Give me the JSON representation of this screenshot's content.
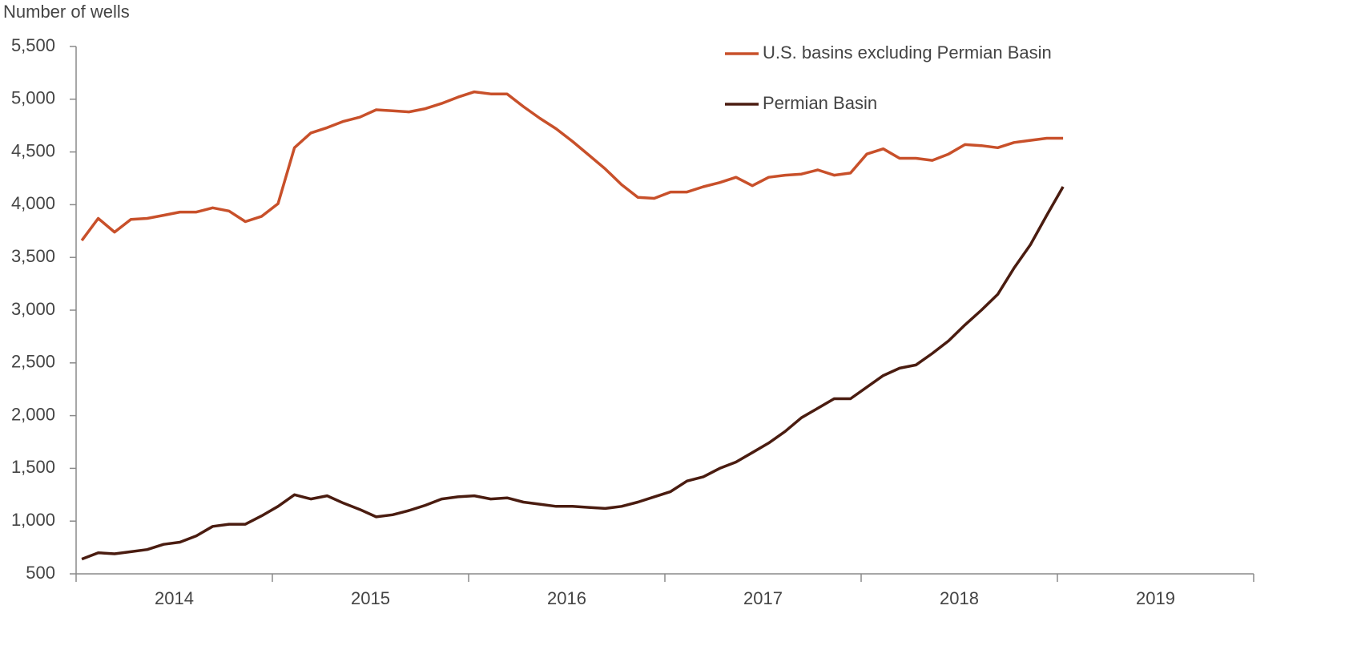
{
  "chart_data": {
    "type": "line",
    "y_axis_label": "Number of wells",
    "categories": [
      null,
      null,
      null,
      null,
      null,
      null,
      null,
      null,
      null,
      null,
      null,
      null,
      null,
      null,
      null,
      null,
      null,
      null,
      null,
      null,
      null,
      null,
      null,
      null,
      null,
      null,
      null,
      null,
      null,
      null,
      null,
      null,
      null,
      null,
      null,
      null,
      null,
      null,
      null,
      null,
      null,
      null,
      null,
      null,
      null,
      null,
      null,
      null,
      null,
      null,
      null,
      null,
      null,
      null,
      null,
      null,
      null,
      null,
      null,
      null,
      null
    ],
    "year_labels": [
      "2014",
      "2015",
      "2016",
      "2017",
      "2018",
      "2019"
    ],
    "series": [
      {
        "name": "U.S. basins excluding Permian Basin",
        "color": "#c8502a",
        "values": [
          3660,
          3870,
          3740,
          3860,
          3870,
          3900,
          3930,
          3930,
          3970,
          3940,
          3840,
          3890,
          4010,
          4540,
          4680,
          4730,
          4790,
          4830,
          4900,
          4890,
          4880,
          4910,
          4960,
          5020,
          5070,
          5050,
          5050,
          4930,
          4820,
          4720,
          4600,
          4470,
          4340,
          4190,
          4070,
          4060,
          4120,
          4120,
          4170,
          4210,
          4260,
          4180,
          4260,
          4280,
          4290,
          4330,
          4280,
          4300,
          4480,
          4530,
          4440,
          4440,
          4420,
          4480,
          4570,
          4560,
          4540,
          4590,
          4610,
          4630,
          4630
        ]
      },
      {
        "name": "Permian Basin",
        "color": "#4a1c10",
        "values": [
          640,
          700,
          690,
          710,
          730,
          780,
          800,
          860,
          950,
          970,
          970,
          1050,
          1140,
          1250,
          1210,
          1240,
          1170,
          1110,
          1040,
          1060,
          1100,
          1150,
          1210,
          1230,
          1240,
          1210,
          1220,
          1180,
          1160,
          1140,
          1140,
          1130,
          1120,
          1140,
          1180,
          1230,
          1280,
          1380,
          1420,
          1500,
          1560,
          1650,
          1740,
          1850,
          1980,
          2070,
          2160,
          2160,
          2270,
          2380,
          2450,
          2480,
          2590,
          2710,
          2860,
          3000,
          3150,
          3400,
          3620,
          3900,
          4170
        ]
      }
    ],
    "ylim": [
      500,
      5500
    ],
    "yticks": [
      500,
      {
        "value": 1000,
        "label": "1,000"
      },
      {
        "value": 1500,
        "label": "1,500"
      },
      {
        "value": 2000,
        "label": "2,000"
      },
      {
        "value": 2500,
        "label": "2,500"
      },
      {
        "value": 3000,
        "label": "3,000"
      },
      {
        "value": 3500,
        "label": "3,500"
      },
      {
        "value": 4000,
        "label": "4,000"
      },
      {
        "value": 4500,
        "label": "4,500"
      },
      {
        "value": 5000,
        "label": "5,000"
      },
      {
        "value": 5500,
        "label": "5,500"
      }
    ],
    "grid": false,
    "legend": "top-right"
  }
}
